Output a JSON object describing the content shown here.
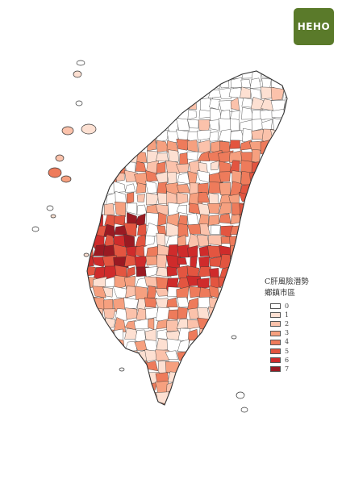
{
  "brand": {
    "logo_text": "HEHO",
    "logo_color": "#5a7a2a"
  },
  "legend": {
    "title_line1": "C肝風險潛勢",
    "title_line2": "鄉鎮市區",
    "items": [
      {
        "label": "0",
        "color": "#ffffff"
      },
      {
        "label": "1",
        "color": "#fde0d2"
      },
      {
        "label": "2",
        "color": "#fbc2ab"
      },
      {
        "label": "3",
        "color": "#f6a07f"
      },
      {
        "label": "4",
        "color": "#ee7b5b"
      },
      {
        "label": "5",
        "color": "#e35540"
      },
      {
        "label": "6",
        "color": "#cf2b2b"
      },
      {
        "label": "7",
        "color": "#9a1a22"
      }
    ]
  },
  "map": {
    "region": "Taiwan",
    "border_color": "#333333"
  }
}
